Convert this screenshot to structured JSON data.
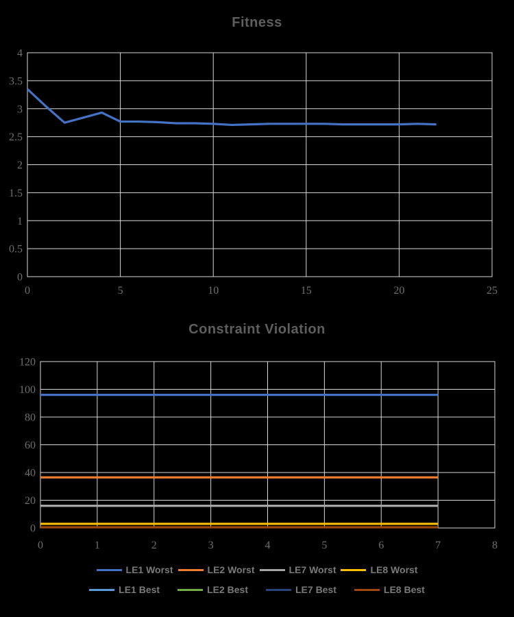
{
  "page": {
    "background": "#000000"
  },
  "colors": {
    "grid": "#D9D9D9",
    "tick_label": "#6f6f6f",
    "title": "#5e5e5e",
    "legend_text": "#7a7a7a"
  },
  "chart_data": [
    {
      "type": "line",
      "title": "Fitness",
      "xlabel": "",
      "ylabel": "",
      "xlim": [
        0,
        25
      ],
      "ylim": [
        0,
        4
      ],
      "x_ticks": [
        0,
        5,
        10,
        15,
        20,
        25
      ],
      "y_ticks": [
        0,
        0.5,
        1,
        1.5,
        2,
        2.5,
        3,
        3.5,
        4
      ],
      "grid": true,
      "legend": null,
      "x": [
        0,
        1,
        2,
        3,
        4,
        5,
        6,
        7,
        8,
        9,
        10,
        11,
        12,
        13,
        14,
        15,
        16,
        17,
        18,
        19,
        20,
        21,
        22
      ],
      "series": [
        {
          "name": "Fitness",
          "color": "#4472C4",
          "values": [
            3.35,
            3.04,
            2.75,
            2.84,
            2.93,
            2.77,
            2.77,
            2.76,
            2.74,
            2.74,
            2.73,
            2.71,
            2.72,
            2.73,
            2.73,
            2.73,
            2.73,
            2.72,
            2.72,
            2.72,
            2.72,
            2.73,
            2.72
          ]
        }
      ]
    },
    {
      "type": "line",
      "title": "Constraint Violation",
      "xlabel": "",
      "ylabel": "",
      "xlim": [
        0,
        8
      ],
      "ylim": [
        0,
        120
      ],
      "x_ticks": [
        0,
        1,
        2,
        3,
        4,
        5,
        6,
        7,
        8
      ],
      "y_ticks": [
        0,
        20,
        40,
        60,
        80,
        100,
        120
      ],
      "grid": true,
      "series": [
        {
          "name": "LE1 Worst",
          "color": "#4472C4",
          "x": [
            0,
            7
          ],
          "values": [
            96,
            96
          ]
        },
        {
          "name": "LE2 Worst",
          "color": "#ED7D31",
          "x": [
            0,
            7
          ],
          "values": [
            36.5,
            36.5
          ]
        },
        {
          "name": "LE7 Worst",
          "color": "#A5A5A5",
          "x": [
            0,
            7
          ],
          "values": [
            16,
            16
          ]
        },
        {
          "name": "LE8 Worst",
          "color": "#FFC000",
          "x": [
            0,
            7
          ],
          "values": [
            3,
            3
          ]
        },
        {
          "name": "LE1 Best",
          "color": "#5B9BD5",
          "x": null,
          "values": null
        },
        {
          "name": "LE2 Best",
          "color": "#70AD47",
          "x": null,
          "values": null
        },
        {
          "name": "LE7 Best",
          "color": "#264478",
          "x": null,
          "values": null
        },
        {
          "name": "LE8 Best",
          "color": "#9E480E",
          "x": [
            0,
            7
          ],
          "values": [
            0.5,
            0.5
          ]
        }
      ],
      "legend": {
        "position": "bottom",
        "rows": [
          [
            "LE1 Worst",
            "LE2 Worst",
            "LE7 Worst",
            "LE8 Worst"
          ],
          [
            "LE1 Best",
            "LE2 Best",
            "LE7 Best",
            "LE8 Best"
          ]
        ]
      }
    }
  ]
}
